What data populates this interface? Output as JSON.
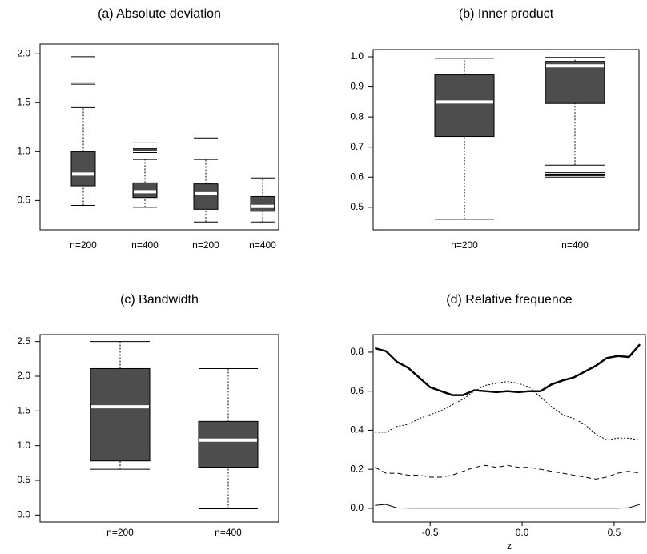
{
  "chart_data": [
    {
      "type": "box",
      "title": "(a) Absolute deviation",
      "categories": [
        "n=200",
        "n=400",
        "n=200",
        "n=400"
      ],
      "boxes": [
        {
          "whislo": 0.45,
          "q1": 0.65,
          "med": 0.77,
          "q3": 1.0,
          "whishi": 1.45,
          "fliers": [
            1.69,
            1.71,
            1.97
          ]
        },
        {
          "whislo": 0.43,
          "q1": 0.53,
          "med": 0.59,
          "q3": 0.68,
          "whishi": 0.92,
          "fliers": [
            0.99,
            1.01,
            1.02,
            1.03,
            1.09
          ]
        },
        {
          "whislo": 0.28,
          "q1": 0.41,
          "med": 0.57,
          "q3": 0.67,
          "whishi": 0.92,
          "fliers": [
            1.14
          ]
        },
        {
          "whislo": 0.28,
          "q1": 0.39,
          "med": 0.44,
          "q3": 0.54,
          "whishi": 0.73,
          "fliers": []
        }
      ],
      "color": "#4d4d4d",
      "median_color": "#ffffff",
      "ylim": [
        0.2,
        2.1
      ],
      "yticks": [
        0.5,
        {
          "value": 1.0,
          "label": "1.0"
        },
        1.5,
        {
          "value": 2.0,
          "label": "2.0"
        }
      ]
    },
    {
      "type": "box",
      "title": "(b) Inner product",
      "categories": [
        "n=200",
        "n=400"
      ],
      "boxes": [
        {
          "whislo": 0.46,
          "q1": 0.735,
          "med": 0.85,
          "q3": 0.94,
          "whishi": 0.995,
          "fliers": []
        },
        {
          "whislo": 0.64,
          "q1": 0.845,
          "med": 0.97,
          "q3": 0.985,
          "whishi": 0.998,
          "fliers": [
            0.6,
            0.605,
            0.61,
            0.615
          ]
        }
      ],
      "color": "#4d4d4d",
      "median_color": "#ffffff",
      "ylim": [
        0.425,
        1.024
      ],
      "yticks": [
        0.5,
        0.6,
        0.7,
        0.8,
        0.9,
        {
          "value": 1.0,
          "label": "1.0"
        }
      ]
    },
    {
      "type": "box",
      "title": "(c) Bandwidth",
      "categories": [
        "n=200",
        "n=400"
      ],
      "boxes": [
        {
          "whislo": 0.66,
          "q1": 0.78,
          "med": 1.56,
          "q3": 2.11,
          "whishi": 2.5,
          "fliers": []
        },
        {
          "whislo": 0.09,
          "q1": 0.69,
          "med": 1.08,
          "q3": 1.35,
          "whishi": 2.11,
          "fliers": []
        }
      ],
      "color": "#4d4d4d",
      "median_color": "#ffffff",
      "ylim": [
        -0.1,
        2.6
      ],
      "yticks": [
        {
          "value": 0,
          "label": "0.0"
        },
        0.5,
        {
          "value": 1.0,
          "label": "1.0"
        },
        1.5,
        {
          "value": 2.0,
          "label": "2.0"
        },
        2.5
      ]
    },
    {
      "type": "line",
      "title": "(d) Relative frequence",
      "xlabel": "z",
      "x": [
        -0.8,
        -0.74,
        -0.68,
        -0.62,
        -0.56,
        -0.5,
        -0.44,
        -0.38,
        -0.32,
        -0.26,
        -0.2,
        -0.14,
        -0.08,
        -0.02,
        0.04,
        0.1,
        0.16,
        0.22,
        0.28,
        0.34,
        0.4,
        0.46,
        0.52,
        0.58,
        0.64
      ],
      "series": [
        {
          "color": "#000000",
          "style": "solid",
          "linewidth": 2.5,
          "values": [
            0.82,
            0.805,
            0.75,
            0.72,
            0.67,
            0.62,
            0.6,
            0.58,
            0.58,
            0.605,
            0.6,
            0.595,
            0.6,
            0.595,
            0.6,
            0.6,
            0.635,
            0.655,
            0.67,
            0.7,
            0.73,
            0.77,
            0.78,
            0.775,
            0.84
          ]
        },
        {
          "color": "#000000",
          "style": "dotted",
          "linewidth": 1,
          "values": [
            0.39,
            0.39,
            0.42,
            0.43,
            0.46,
            0.48,
            0.5,
            0.53,
            0.56,
            0.6,
            0.63,
            0.64,
            0.65,
            0.64,
            0.62,
            0.57,
            0.52,
            0.48,
            0.46,
            0.43,
            0.38,
            0.35,
            0.36,
            0.36,
            0.35
          ]
        },
        {
          "color": "#000000",
          "style": "dashed",
          "linewidth": 1,
          "values": [
            0.21,
            0.18,
            0.18,
            0.17,
            0.17,
            0.16,
            0.16,
            0.17,
            0.19,
            0.21,
            0.22,
            0.21,
            0.22,
            0.21,
            0.21,
            0.2,
            0.19,
            0.18,
            0.17,
            0.16,
            0.15,
            0.16,
            0.18,
            0.19,
            0.18
          ]
        },
        {
          "color": "#000000",
          "style": "solid",
          "linewidth": 1,
          "values": [
            0.015,
            0.02,
            0.002,
            0.001,
            0.001,
            0.001,
            0.001,
            0.001,
            0.001,
            0.001,
            0.001,
            0.001,
            0.001,
            0.001,
            0.001,
            0.001,
            0.001,
            0.001,
            0.001,
            0.001,
            0.001,
            0.001,
            0.001,
            0.003,
            0.02
          ]
        }
      ],
      "xlim": [
        -0.81,
        0.67
      ],
      "xticks": [
        -0.5,
        {
          "value": 0,
          "label": "0.0"
        },
        0.5
      ],
      "ylim": [
        -0.07,
        0.89
      ],
      "yticks": [
        {
          "value": 0,
          "label": "0.0"
        },
        0.2,
        0.4,
        0.6,
        0.8
      ]
    }
  ]
}
